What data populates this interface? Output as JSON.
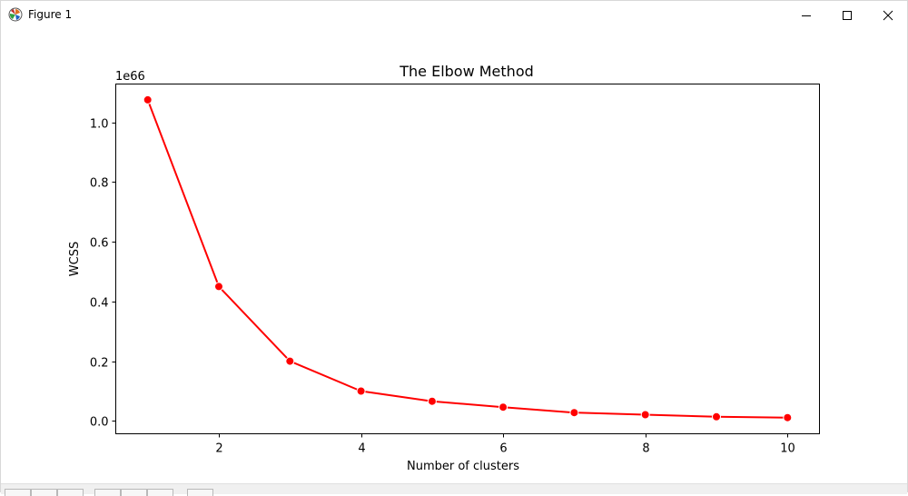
{
  "window": {
    "title": "Figure 1",
    "app_icon": "matplotlib-icon",
    "controls": [
      "minimize-icon",
      "maximize-icon",
      "close-icon"
    ]
  },
  "chart_data": {
    "type": "line",
    "title": "The Elbow Method",
    "xlabel": "Number of clusters",
    "ylabel": "WCSS",
    "y_offset_label": "1e66",
    "x": [
      1,
      2,
      3,
      4,
      5,
      6,
      7,
      8,
      9,
      10
    ],
    "y": [
      1.075,
      0.45,
      0.2,
      0.1,
      0.066,
      0.046,
      0.028,
      0.021,
      0.014,
      0.011
    ],
    "xticks": [
      2,
      4,
      6,
      8,
      10
    ],
    "xtick_labels": [
      "2",
      "4",
      "6",
      "8",
      "10"
    ],
    "yticks": [
      0.0,
      0.2,
      0.4,
      0.6,
      0.8,
      1.0
    ],
    "ytick_labels": [
      "0.0",
      "0.2",
      "0.4",
      "0.6",
      "0.8",
      "1.0"
    ],
    "xlim": [
      0.55,
      10.45
    ],
    "ylim": [
      -0.043,
      1.128
    ],
    "grid": false,
    "line_color": "#ff0000",
    "marker_fill": "#ff0000",
    "marker_edge": "#ffffff"
  },
  "toolbar": {
    "buttons": [
      "home-icon",
      "back-icon",
      "forward-icon",
      "pan-icon",
      "zoom-icon",
      "configure-icon",
      "save-icon"
    ]
  }
}
